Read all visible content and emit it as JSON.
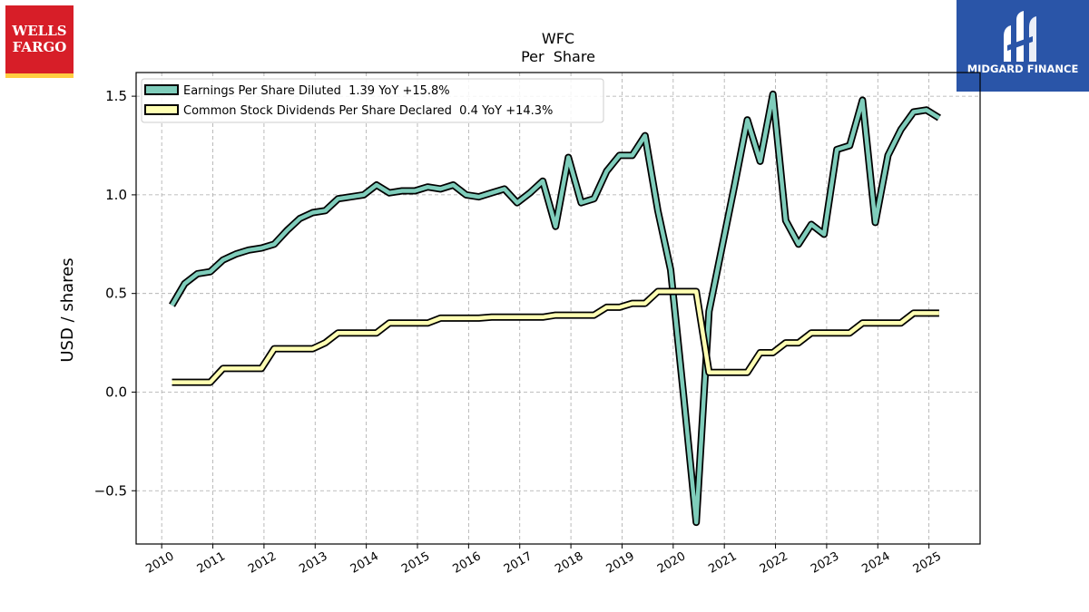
{
  "logos": {
    "left_text": "WELLS FARGO",
    "left_color": "#d71e28",
    "left_stripe": "#ffcd41",
    "right_text": "MIDGARD FINANCE",
    "right_color": "#2a55a8"
  },
  "chart_data": {
    "type": "line",
    "title": "WFC",
    "subtitle": "Per  Share",
    "xlabel": "",
    "ylabel": "USD / shares",
    "xlim": [
      2009.5,
      2026.0
    ],
    "ylim": [
      -0.77,
      1.62
    ],
    "xticks": [
      2010,
      2011,
      2012,
      2013,
      2014,
      2015,
      2016,
      2017,
      2018,
      2019,
      2020,
      2021,
      2022,
      2023,
      2024,
      2025
    ],
    "xtick_labels": [
      "2010",
      "2011",
      "2012",
      "2013",
      "2014",
      "2015",
      "2016",
      "2017",
      "2018",
      "2019",
      "2020",
      "2021",
      "2022",
      "2023",
      "2024",
      "2025"
    ],
    "yticks": [
      -0.5,
      0.0,
      0.5,
      1.0,
      1.5
    ],
    "ytick_labels": [
      "−0.5",
      "0.0",
      "0.5",
      "1.0",
      "1.5"
    ],
    "grid": true,
    "legend_position": "top-left",
    "series": [
      {
        "name": "Earnings Per Share Diluted  1.39 YoY +15.8%",
        "color": "#7fcdbb",
        "x": [
          2010.2,
          2010.45,
          2010.7,
          2010.95,
          2011.2,
          2011.45,
          2011.7,
          2011.95,
          2012.2,
          2012.45,
          2012.7,
          2012.95,
          2013.2,
          2013.45,
          2013.7,
          2013.95,
          2014.2,
          2014.45,
          2014.7,
          2014.95,
          2015.2,
          2015.45,
          2015.7,
          2015.95,
          2016.2,
          2016.45,
          2016.7,
          2016.95,
          2017.2,
          2017.45,
          2017.7,
          2017.95,
          2018.2,
          2018.45,
          2018.7,
          2018.95,
          2019.2,
          2019.45,
          2019.7,
          2019.95,
          2020.2,
          2020.45,
          2020.7,
          2020.95,
          2021.2,
          2021.45,
          2021.7,
          2021.95,
          2022.2,
          2022.45,
          2022.7,
          2022.95,
          2023.2,
          2023.45,
          2023.7,
          2023.95,
          2024.2,
          2024.45,
          2024.7,
          2024.95,
          2025.2
        ],
        "values": [
          0.44,
          0.55,
          0.6,
          0.61,
          0.67,
          0.7,
          0.72,
          0.73,
          0.75,
          0.82,
          0.88,
          0.91,
          0.92,
          0.98,
          0.99,
          1.0,
          1.05,
          1.01,
          1.02,
          1.02,
          1.04,
          1.03,
          1.05,
          1.0,
          0.99,
          1.01,
          1.03,
          0.96,
          1.01,
          1.07,
          0.84,
          1.19,
          0.96,
          0.98,
          1.12,
          1.2,
          1.2,
          1.3,
          0.92,
          0.62,
          -0.01,
          -0.66,
          0.41,
          0.73,
          1.05,
          1.38,
          1.17,
          1.51,
          0.87,
          0.75,
          0.85,
          0.8,
          1.23,
          1.25,
          1.48,
          0.86,
          1.2,
          1.33,
          1.42,
          1.43,
          1.39
        ]
      },
      {
        "name": "Common Stock Dividends Per Share Declared  0.4 YoY +14.3%",
        "color": "#ffffb3",
        "x": [
          2010.2,
          2010.45,
          2010.7,
          2010.95,
          2011.2,
          2011.45,
          2011.7,
          2011.95,
          2012.2,
          2012.45,
          2012.7,
          2012.95,
          2013.2,
          2013.45,
          2013.7,
          2013.95,
          2014.2,
          2014.45,
          2014.7,
          2014.95,
          2015.2,
          2015.45,
          2015.7,
          2015.95,
          2016.2,
          2016.45,
          2016.7,
          2016.95,
          2017.2,
          2017.45,
          2017.7,
          2017.95,
          2018.2,
          2018.45,
          2018.7,
          2018.95,
          2019.2,
          2019.45,
          2019.7,
          2019.95,
          2020.2,
          2020.45,
          2020.7,
          2020.95,
          2021.2,
          2021.45,
          2021.7,
          2021.95,
          2022.2,
          2022.45,
          2022.7,
          2022.95,
          2023.2,
          2023.45,
          2023.7,
          2023.95,
          2024.2,
          2024.45,
          2024.7,
          2024.95,
          2025.2
        ],
        "values": [
          0.05,
          0.05,
          0.05,
          0.05,
          0.12,
          0.12,
          0.12,
          0.12,
          0.22,
          0.22,
          0.22,
          0.22,
          0.25,
          0.3,
          0.3,
          0.3,
          0.3,
          0.35,
          0.35,
          0.35,
          0.35,
          0.375,
          0.375,
          0.375,
          0.375,
          0.38,
          0.38,
          0.38,
          0.38,
          0.38,
          0.39,
          0.39,
          0.39,
          0.39,
          0.43,
          0.43,
          0.45,
          0.45,
          0.51,
          0.51,
          0.51,
          0.51,
          0.1,
          0.1,
          0.1,
          0.1,
          0.2,
          0.2,
          0.25,
          0.25,
          0.3,
          0.3,
          0.3,
          0.3,
          0.35,
          0.35,
          0.35,
          0.35,
          0.4,
          0.4,
          0.4
        ]
      }
    ]
  }
}
